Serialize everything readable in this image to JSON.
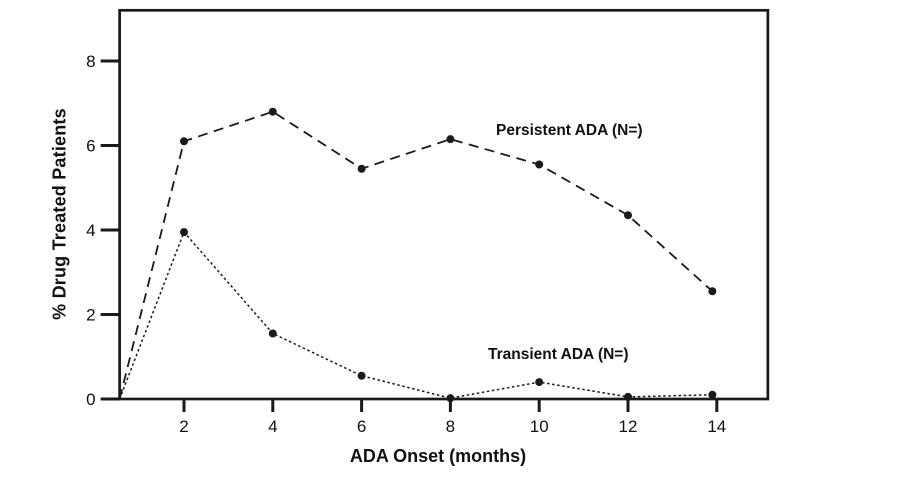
{
  "figure": {
    "background_color": "#ffffff",
    "line_color": "#1a1a1a",
    "text_color": "#111111"
  },
  "chart_data": {
    "type": "line",
    "title": "",
    "xlabel": "ADA Onset (months)",
    "ylabel": "% Drug Treated Patients",
    "xlim": [
      0.55,
      15.15
    ],
    "ylim": [
      0,
      9.2
    ],
    "xticks": [
      2,
      4,
      6,
      8,
      10,
      12,
      14
    ],
    "yticks": [
      0,
      2,
      4,
      6,
      8
    ],
    "grid": false,
    "legend_position": "inline-annotations",
    "series": [
      {
        "name": "Persistent ADA (N=)",
        "line_style": "dashed",
        "marker": "filled-circle",
        "marker_from_index": 1,
        "x": [
          0.55,
          2,
          4,
          6,
          8,
          10,
          12,
          13.9
        ],
        "y": [
          0,
          6.1,
          6.8,
          5.45,
          6.15,
          5.55,
          4.35,
          2.55
        ]
      },
      {
        "name": "Transient ADA (N=)",
        "line_style": "dotted",
        "marker": "filled-circle",
        "marker_from_index": 1,
        "x": [
          0.55,
          2,
          4,
          6,
          8,
          10,
          12,
          13.9
        ],
        "y": [
          0,
          3.95,
          1.55,
          0.55,
          0.02,
          0.4,
          0.05,
          0.1
        ]
      }
    ]
  }
}
